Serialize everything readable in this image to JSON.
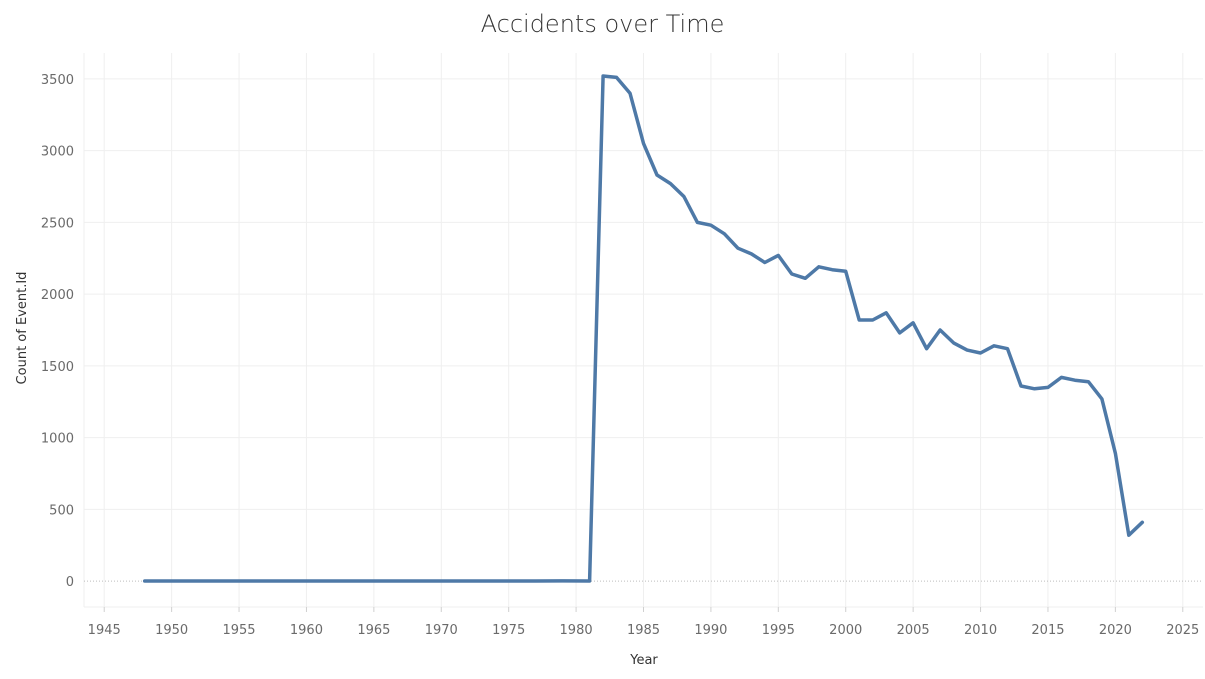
{
  "chart_data": {
    "type": "line",
    "title": "Accidents over Time",
    "xlabel": "Year",
    "ylabel": "Count of Event.Id",
    "xlim": [
      1943.5,
      2026.5
    ],
    "ylim": [
      -180,
      3680
    ],
    "x_ticks": [
      1945,
      1950,
      1955,
      1960,
      1965,
      1970,
      1975,
      1980,
      1985,
      1990,
      1995,
      2000,
      2005,
      2010,
      2015,
      2020,
      2025
    ],
    "y_ticks": [
      0,
      500,
      1000,
      1500,
      2000,
      2500,
      3000,
      3500
    ],
    "grid": true,
    "series": [
      {
        "color": "#4e79a7",
        "x": [
          1948,
          1962,
          1974,
          1977,
          1979,
          1981,
          1982,
          1983,
          1984,
          1985,
          1986,
          1987,
          1988,
          1989,
          1990,
          1991,
          1992,
          1993,
          1994,
          1995,
          1996,
          1997,
          1998,
          1999,
          2000,
          2001,
          2002,
          2003,
          2004,
          2005,
          2006,
          2007,
          2008,
          2009,
          2010,
          2011,
          2012,
          2013,
          2014,
          2015,
          2016,
          2017,
          2018,
          2019,
          2020,
          2021,
          2022
        ],
        "y": [
          1,
          1,
          1,
          1,
          2,
          1,
          3520,
          3510,
          3400,
          3050,
          2830,
          2770,
          2680,
          2500,
          2480,
          2420,
          2320,
          2280,
          2220,
          2270,
          2140,
          2110,
          2190,
          2170,
          2160,
          1820,
          1820,
          1870,
          1730,
          1800,
          1620,
          1750,
          1660,
          1610,
          1590,
          1640,
          1620,
          1360,
          1340,
          1350,
          1420,
          1400,
          1390,
          1270,
          890,
          320,
          410
        ]
      }
    ]
  }
}
